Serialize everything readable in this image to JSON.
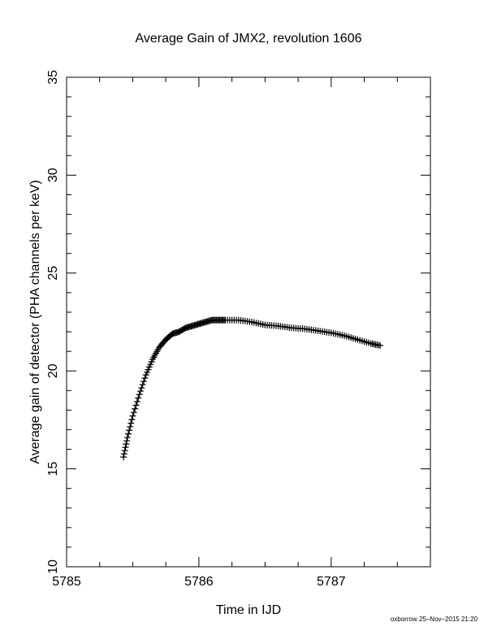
{
  "chart_data": {
    "type": "scatter",
    "title": "Average Gain of JMX2, revolution 1606",
    "xlabel": "Time in IJD",
    "ylabel": "Average gain of detector (PHA channels per keV)",
    "xlim": [
      5785,
      5787.75
    ],
    "ylim": [
      10,
      35
    ],
    "xticks": [
      "5785",
      "5786",
      "5787"
    ],
    "yticks": [
      "10",
      "15",
      "20",
      "25",
      "30",
      "35"
    ],
    "marker": "plus",
    "color": "#000000",
    "grid": false,
    "series": [
      {
        "x": [
          5785.43,
          5785.46,
          5785.5,
          5785.55,
          5785.6,
          5785.65,
          5785.7,
          5785.75,
          5785.8,
          5785.85,
          5785.9,
          5785.95,
          5786.0,
          5786.05,
          5786.1,
          5786.15,
          5786.2,
          5786.3,
          5786.4,
          5786.5,
          5786.6,
          5786.7,
          5786.8,
          5786.9,
          5787.0,
          5787.1,
          5787.2,
          5787.3,
          5787.37
        ],
        "y": [
          15.6,
          16.6,
          17.7,
          18.8,
          19.8,
          20.6,
          21.2,
          21.6,
          21.9,
          22.0,
          22.2,
          22.3,
          22.4,
          22.5,
          22.6,
          22.6,
          22.6,
          22.6,
          22.5,
          22.35,
          22.3,
          22.2,
          22.15,
          22.05,
          21.95,
          21.8,
          21.6,
          21.4,
          21.3
        ]
      }
    ]
  },
  "footer": {
    "stamp": "oxborrow 25–Nov–2015 21:20"
  }
}
